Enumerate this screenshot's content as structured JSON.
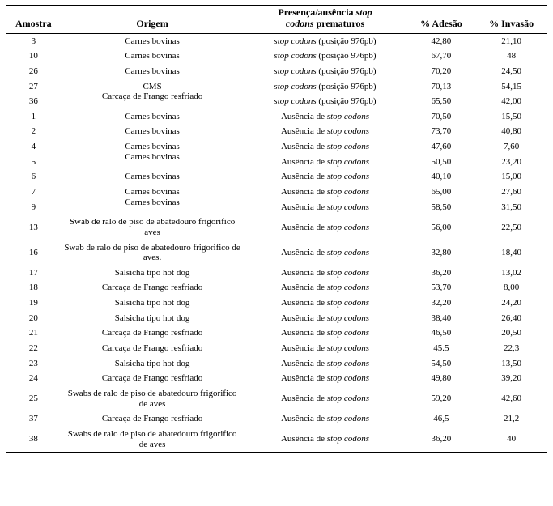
{
  "colors": {
    "text": "#000000",
    "background": "#ffffff",
    "rule": "#000000"
  },
  "typography": {
    "family": "Times New Roman, serif",
    "header_fontsize_pt": 12,
    "body_fontsize_pt": 11
  },
  "columns": {
    "amostra": "Amostra",
    "origem": "Origem",
    "stop_line1_prefix": "Presença/ausência ",
    "stop_line1_em": "stop",
    "stop_line2_em": "codons",
    "stop_line2_suffix": "  prematuros",
    "adesao": "% Adesão",
    "invasao": "% Invasão"
  },
  "stop_text": {
    "presence_em": "stop codons",
    "presence_suffix": "  (posição 976pb)",
    "absence_prefix": "Ausência de ",
    "absence_em": "stop codons"
  },
  "layout": {
    "col_widths_percent": [
      10,
      34,
      30,
      13,
      13
    ]
  },
  "rows": [
    {
      "amostra": "3",
      "origem": "Carnes bovinas",
      "stop": "presence",
      "adesao": "42,80",
      "invasao": "21,10"
    },
    {
      "amostra": "10",
      "origem": "Carnes bovinas",
      "stop": "presence",
      "adesao": "67,70",
      "invasao": "48"
    },
    {
      "amostra": "26",
      "origem": "Carnes bovinas",
      "stop": "presence",
      "adesao": "70,20",
      "invasao": "24,50"
    },
    {
      "amostra": "27",
      "origem": "CMS",
      "stop": "presence",
      "adesao": "70,13",
      "invasao": "54,15"
    },
    {
      "amostra": "36",
      "origem": "Carcaça de Frango resfriado",
      "stop": "presence",
      "adesao": "65,50",
      "invasao": "42,00",
      "origem_shift_up": true
    },
    {
      "amostra": "1",
      "origem": "Carnes bovinas",
      "stop": "absence",
      "adesao": "70,50",
      "invasao": "15,50"
    },
    {
      "amostra": "2",
      "origem": "Carnes bovinas",
      "stop": "absence",
      "adesao": "73,70",
      "invasao": "40,80"
    },
    {
      "amostra": "4",
      "origem": "Carnes bovinas",
      "stop": "absence",
      "adesao": "47,60",
      "invasao": "7,60"
    },
    {
      "amostra": "5",
      "origem": "Carnes bovinas",
      "stop": "absence",
      "adesao": "50,50",
      "invasao": "23,20",
      "origem_shift_up": true
    },
    {
      "amostra": "6",
      "origem": "Carnes bovinas",
      "stop": "absence",
      "adesao": "40,10",
      "invasao": "15,00"
    },
    {
      "amostra": "7",
      "origem": "Carnes bovinas",
      "stop": "absence",
      "adesao": "65,00",
      "invasao": "27,60"
    },
    {
      "amostra": "9",
      "origem": "Carnes bovinas",
      "stop": "absence",
      "adesao": "58,50",
      "invasao": "31,50",
      "origem_shift_up": true
    },
    {
      "amostra": "13",
      "origem": "Swab de ralo de piso de  abatedouro frigorifico aves",
      "stop": "absence",
      "adesao": "56,00",
      "invasao": "22,50",
      "two_line": true
    },
    {
      "amostra": "16",
      "origem": "Swab de ralo de piso de  abatedouro frigorifico de aves.",
      "stop": "absence",
      "adesao": "32,80",
      "invasao": "18,40",
      "two_line": true
    },
    {
      "amostra": "17",
      "origem": "Salsicha tipo hot dog",
      "stop": "absence",
      "adesao": "36,20",
      "invasao": "13,02"
    },
    {
      "amostra": "18",
      "origem": "Carcaça de Frango resfriado",
      "stop": "absence",
      "adesao": "53,70",
      "invasao": "8,00"
    },
    {
      "amostra": "19",
      "origem": "Salsicha tipo hot dog",
      "stop": "absence",
      "adesao": "32,20",
      "invasao": "24,20"
    },
    {
      "amostra": "20",
      "origem": "Salsicha tipo hot dog",
      "stop": "absence",
      "adesao": "38,40",
      "invasao": "26,40"
    },
    {
      "amostra": "21",
      "origem": "Carcaça de Frango resfriado",
      "stop": "absence",
      "adesao": "46,50",
      "invasao": "20,50"
    },
    {
      "amostra": "22",
      "origem": "Carcaça de Frango resfriado",
      "stop": "absence",
      "adesao": "45.5",
      "invasao": "22,3"
    },
    {
      "amostra": "23",
      "origem": "Salsicha tipo hot dog",
      "stop": "absence",
      "adesao": "54,50",
      "invasao": "13,50"
    },
    {
      "amostra": "24",
      "origem": "Carcaça de Frango resfriado",
      "stop": "absence",
      "adesao": "49,80",
      "invasao": "39,20"
    },
    {
      "amostra": "25",
      "origem": "Swabs de ralo de piso de  abatedouro frigorifico de aves",
      "stop": "absence",
      "adesao": "59,20",
      "invasao": "42,60",
      "two_line": true
    },
    {
      "amostra": "37",
      "origem": "Carcaça de Frango resfriado",
      "stop": "absence",
      "adesao": "46,5",
      "invasao": "21,2"
    },
    {
      "amostra": "38",
      "origem": "Swabs de ralo de piso de  abatedouro frigorifico de aves",
      "stop": "absence",
      "adesao": "36,20",
      "invasao": "40",
      "two_line": true
    }
  ]
}
